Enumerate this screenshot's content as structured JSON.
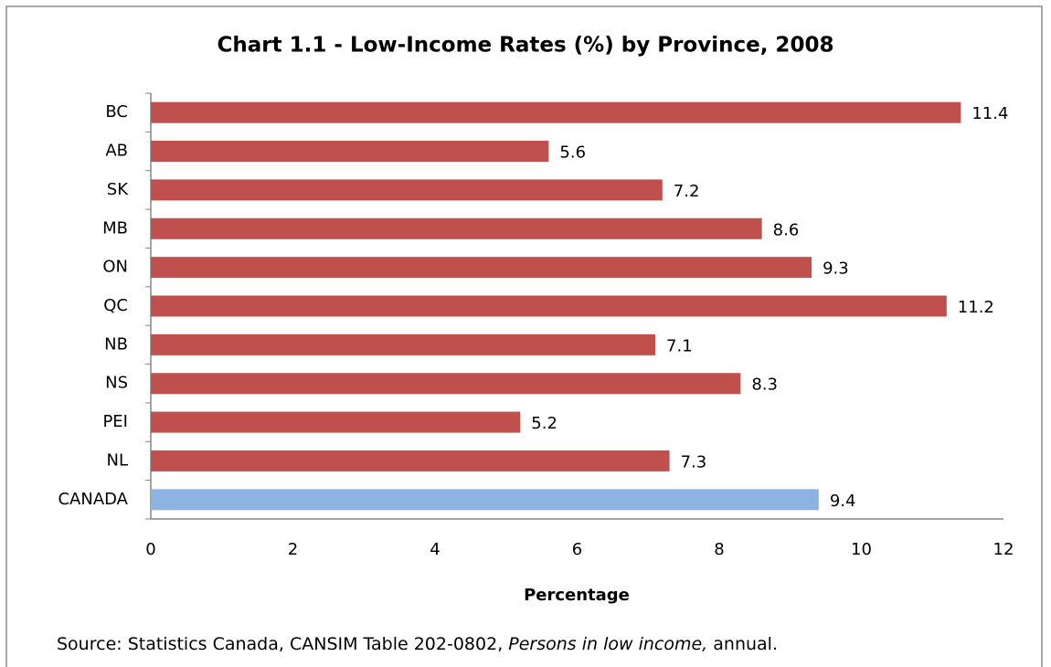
{
  "chart_data": {
    "type": "bar",
    "orientation": "horizontal",
    "title": "Chart 1.1 - Low-Income Rates (%) by Province, 2008",
    "categories": [
      "BC",
      "AB",
      "SK",
      "MB",
      "ON",
      "QC",
      "NB",
      "NS",
      "PEI",
      "NL",
      "CANADA"
    ],
    "values": [
      11.4,
      5.6,
      7.2,
      8.6,
      9.3,
      11.2,
      7.1,
      8.3,
      5.2,
      7.3,
      9.4
    ],
    "colors": [
      "#c0504d",
      "#c0504d",
      "#c0504d",
      "#c0504d",
      "#c0504d",
      "#c0504d",
      "#c0504d",
      "#c0504d",
      "#c0504d",
      "#c0504d",
      "#8db3e2"
    ],
    "xlim": [
      0,
      12
    ],
    "xticks": [
      0,
      2,
      4,
      6,
      8,
      10,
      12
    ],
    "xlabel": "Percentage",
    "source": [
      "Source: Statistics Canada, CANSIM Table 202-0802, ",
      "Persons in low income,",
      " annual."
    ],
    "grid": false
  }
}
